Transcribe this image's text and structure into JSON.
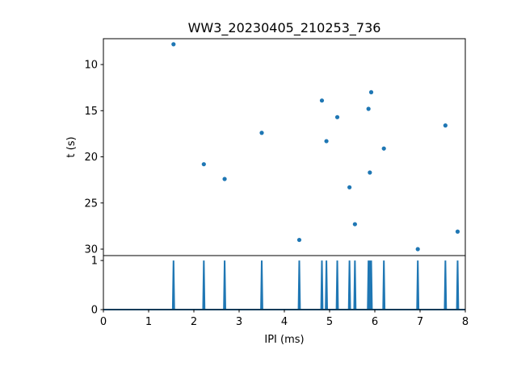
{
  "chart_data": [
    {
      "type": "scatter",
      "title": "WW3_20230405_210253_736",
      "xlabel": "",
      "ylabel": "t (s)",
      "xlim": [
        0,
        8
      ],
      "ylim": [
        30.7,
        7.2
      ],
      "y_inverted": true,
      "yticks": [
        10,
        15,
        20,
        25,
        30
      ],
      "x_shared_with_panel_below": true,
      "color": "#1f77b4",
      "grid": false,
      "points": [
        {
          "x": 1.55,
          "y": 7.8
        },
        {
          "x": 2.22,
          "y": 20.8
        },
        {
          "x": 2.68,
          "y": 22.4
        },
        {
          "x": 3.5,
          "y": 17.4
        },
        {
          "x": 4.33,
          "y": 29.0
        },
        {
          "x": 4.83,
          "y": 13.9
        },
        {
          "x": 4.93,
          "y": 18.3
        },
        {
          "x": 5.17,
          "y": 15.7
        },
        {
          "x": 5.44,
          "y": 23.3
        },
        {
          "x": 5.56,
          "y": 27.3
        },
        {
          "x": 5.86,
          "y": 14.8
        },
        {
          "x": 5.89,
          "y": 21.7
        },
        {
          "x": 5.92,
          "y": 13.0
        },
        {
          "x": 6.2,
          "y": 19.1
        },
        {
          "x": 6.95,
          "y": 30.0
        },
        {
          "x": 7.56,
          "y": 16.6
        },
        {
          "x": 7.83,
          "y": 28.1
        }
      ]
    },
    {
      "type": "line",
      "title": "",
      "xlabel": "IPI (ms)",
      "ylabel": "",
      "xlim": [
        0,
        8
      ],
      "ylim": [
        0,
        1.1
      ],
      "xticks": [
        0,
        1,
        2,
        3,
        4,
        5,
        6,
        7,
        8
      ],
      "yticks": [
        0,
        1
      ],
      "color": "#1f77b4",
      "grid": false,
      "baseline": 0,
      "spikes": [
        {
          "x": 1.55,
          "y": 1
        },
        {
          "x": 2.22,
          "y": 1
        },
        {
          "x": 2.68,
          "y": 1
        },
        {
          "x": 3.5,
          "y": 1
        },
        {
          "x": 4.33,
          "y": 1
        },
        {
          "x": 4.83,
          "y": 1
        },
        {
          "x": 4.93,
          "y": 1
        },
        {
          "x": 5.17,
          "y": 1
        },
        {
          "x": 5.44,
          "y": 1
        },
        {
          "x": 5.56,
          "y": 1
        },
        {
          "x": 5.86,
          "y": 1
        },
        {
          "x": 5.89,
          "y": 1
        },
        {
          "x": 5.92,
          "y": 1
        },
        {
          "x": 6.2,
          "y": 1
        },
        {
          "x": 6.95,
          "y": 1
        },
        {
          "x": 7.56,
          "y": 1
        },
        {
          "x": 7.83,
          "y": 1
        }
      ]
    }
  ]
}
